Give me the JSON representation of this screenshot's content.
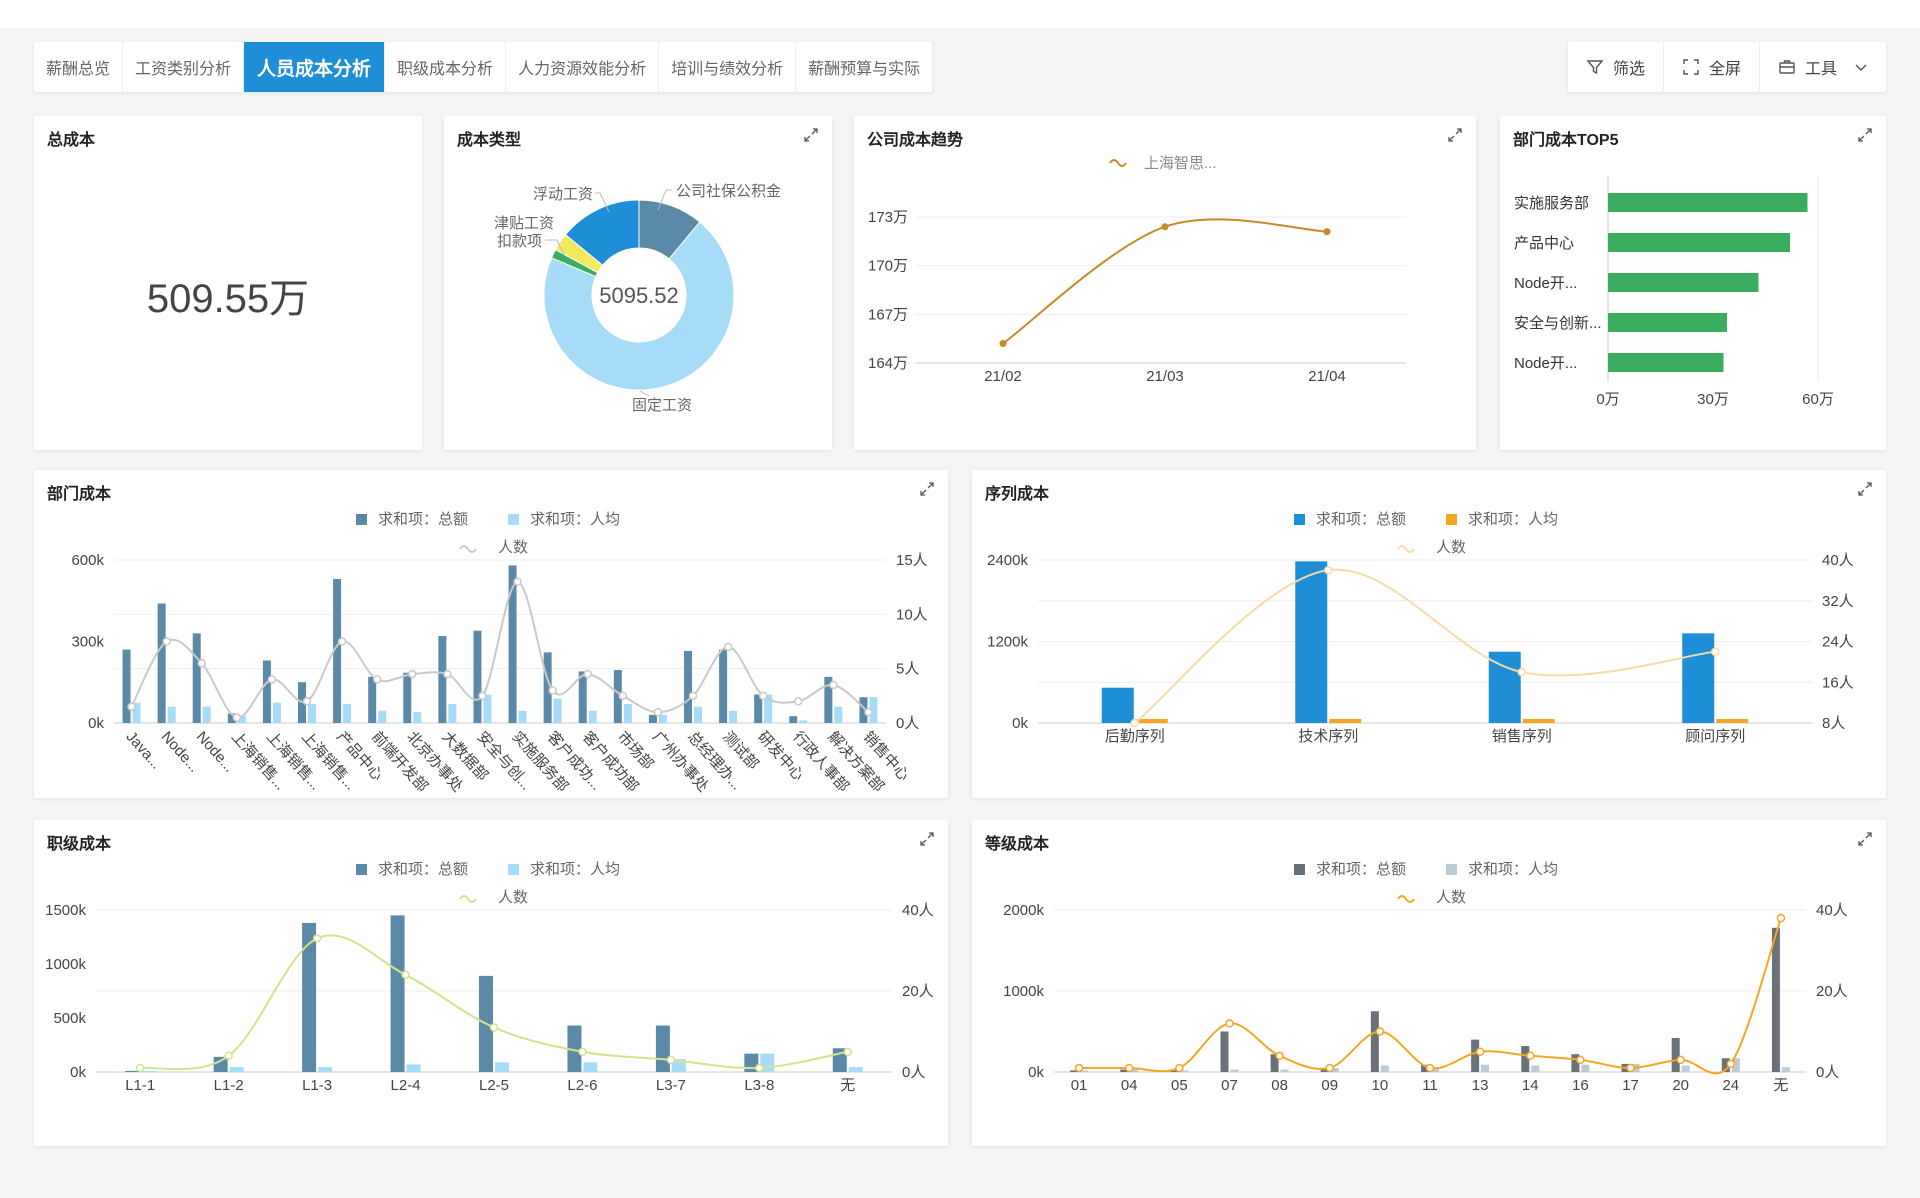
{
  "tabs": [
    "薪酬总览",
    "工资类别分析",
    "人员成本分析",
    "职级成本分析",
    "人力资源效能分析",
    "培训与绩效分析",
    "薪酬预算与实际"
  ],
  "active_tab": 2,
  "toolbar": {
    "filter": {
      "label": "筛选",
      "icon": "filter-icon"
    },
    "fullscreen": {
      "label": "全屏",
      "icon": "fullscreen-icon"
    },
    "tools": {
      "label": "工具",
      "icon": "toolbox-icon"
    }
  },
  "cards": {
    "total": {
      "title": "总成本",
      "value": "509.55万"
    },
    "cost_type": {
      "title": "成本类型"
    },
    "trend": {
      "title": "公司成本趋势"
    },
    "top5": {
      "title": "部门成本TOP5"
    },
    "dept": {
      "title": "部门成本"
    },
    "sequence": {
      "title": "序列成本"
    },
    "rank": {
      "title": "职级成本"
    },
    "grade": {
      "title": "等级成本"
    }
  },
  "legend": {
    "total": "求和项：总额",
    "avg": "求和项：人均",
    "count": "人数"
  },
  "colors": {
    "accent": "#1e8fd6",
    "steel": "#5b8aa8",
    "light_blue": "#a6dcf8",
    "orange": "#f5a623",
    "green": "#3cac5f",
    "gold": "#c88a26",
    "gray": "#6a7178",
    "yellow_green": "#d4e28c",
    "pale_orange": "#f9d9a8"
  },
  "chart_data": [
    {
      "id": "cost_type",
      "type": "pie",
      "center_label": "5095.52",
      "slices": [
        {
          "label": "固定工资",
          "value": 70,
          "color": "#a6dcf8"
        },
        {
          "label": "公司社保公积金",
          "value": 11,
          "color": "#5b8aa8"
        },
        {
          "label": "浮动工资",
          "value": 14,
          "color": "#1e8fd6"
        },
        {
          "label": "津贴工资",
          "value": 3,
          "color": "#f1ea5d"
        },
        {
          "label": "扣款项",
          "value": 1.5,
          "color": "#3cac5f"
        }
      ]
    },
    {
      "id": "trend",
      "type": "line",
      "legend": "上海智思...",
      "x": [
        "21/02",
        "21/03",
        "21/04"
      ],
      "y": [
        165.2,
        172.4,
        172.1
      ],
      "yticks": [
        "164万",
        "167万",
        "170万",
        "173万"
      ],
      "ylim": [
        164,
        173
      ]
    },
    {
      "id": "top5",
      "type": "bar",
      "orientation": "horizontal",
      "categories": [
        "实施服务部",
        "产品中心",
        "Node开...",
        "安全与创新...",
        "Node开..."
      ],
      "values": [
        57,
        52,
        43,
        34,
        33
      ],
      "xticks": [
        "0万",
        "30万",
        "60万"
      ],
      "xlim": [
        0,
        60
      ]
    },
    {
      "id": "dept",
      "type": "bar",
      "categories": [
        "Java...",
        "Node...",
        "Node...",
        "上海销售...",
        "上海销售...",
        "上海销售...",
        "产品中心",
        "前端开发部",
        "北京办事处",
        "大数据部",
        "安全与创...",
        "实施服务部",
        "客户成功...",
        "客户成功部",
        "市场部",
        "广州办事处",
        "总经理办...",
        "测试部",
        "研发中心",
        "行政人事部",
        "解决方案部",
        "销售中心"
      ],
      "series": [
        {
          "name": "求和项：总额",
          "values": [
            270,
            440,
            330,
            35,
            230,
            150,
            530,
            170,
            185,
            320,
            340,
            580,
            260,
            190,
            195,
            30,
            265,
            270,
            105,
            25,
            170,
            95
          ],
          "axis": "left"
        },
        {
          "name": "求和项：人均",
          "values": [
            75,
            60,
            60,
            25,
            75,
            70,
            70,
            45,
            40,
            70,
            105,
            45,
            90,
            45,
            70,
            30,
            60,
            45,
            105,
            10,
            60,
            95
          ],
          "axis": "left"
        },
        {
          "name": "人数",
          "values": [
            1.5,
            7.5,
            5.5,
            0.5,
            4,
            2,
            7.5,
            4,
            4.5,
            4.5,
            2.5,
            13,
            3,
            4.5,
            2.5,
            1,
            2.5,
            7,
            2.5,
            2,
            3.5,
            1
          ],
          "axis": "right"
        }
      ],
      "yticks": [
        "0k",
        "300k",
        "600k"
      ],
      "ylim": [
        0,
        600
      ],
      "y2ticks": [
        "0人",
        "5人",
        "10人",
        "15人"
      ],
      "y2lim": [
        0,
        15
      ]
    },
    {
      "id": "sequence",
      "type": "bar",
      "categories": [
        "后勤序列",
        "技术序列",
        "销售序列",
        "顾问序列"
      ],
      "series": [
        {
          "name": "求和项：总额",
          "values": [
            520,
            2380,
            1050,
            1320
          ],
          "axis": "left"
        },
        {
          "name": "求和项：人均",
          "values": [
            60,
            60,
            60,
            60
          ],
          "axis": "left"
        },
        {
          "name": "人数",
          "values": [
            8,
            38,
            18,
            22
          ],
          "axis": "right"
        }
      ],
      "yticks": [
        "0k",
        "1200k",
        "2400k"
      ],
      "ylim": [
        0,
        2400
      ],
      "y2ticks": [
        "8人",
        "16人",
        "24人",
        "32人",
        "40人"
      ],
      "y2lim": [
        8,
        40
      ]
    },
    {
      "id": "rank",
      "type": "bar",
      "categories": [
        "L1-1",
        "L1-2",
        "L1-3",
        "L2-4",
        "L2-5",
        "L2-6",
        "L3-7",
        "L3-8",
        "无"
      ],
      "series": [
        {
          "name": "求和项：总额",
          "values": [
            10,
            140,
            1380,
            1450,
            890,
            430,
            430,
            170,
            220
          ],
          "axis": "left"
        },
        {
          "name": "求和项：人均",
          "values": [
            10,
            45,
            45,
            70,
            90,
            90,
            120,
            170,
            45
          ],
          "axis": "left"
        },
        {
          "name": "人数",
          "values": [
            1,
            4,
            33,
            24,
            11,
            5,
            3,
            1,
            5
          ],
          "axis": "right"
        }
      ],
      "yticks": [
        "0k",
        "500k",
        "1000k",
        "1500k"
      ],
      "ylim": [
        0,
        1500
      ],
      "y2ticks": [
        "0人",
        "20人",
        "40人"
      ],
      "y2lim": [
        0,
        40
      ]
    },
    {
      "id": "grade",
      "type": "bar",
      "categories": [
        "01",
        "04",
        "05",
        "07",
        "08",
        "09",
        "10",
        "11",
        "13",
        "14",
        "16",
        "17",
        "20",
        "24",
        "无"
      ],
      "series": [
        {
          "name": "求和项：总额",
          "values": [
            20,
            30,
            20,
            500,
            220,
            50,
            750,
            90,
            400,
            320,
            220,
            100,
            420,
            170,
            1780
          ],
          "axis": "left"
        },
        {
          "name": "求和项：人均",
          "values": [
            20,
            30,
            20,
            30,
            30,
            50,
            80,
            60,
            90,
            80,
            90,
            100,
            80,
            170,
            60
          ],
          "axis": "left"
        },
        {
          "name": "人数",
          "values": [
            1,
            1,
            1,
            12,
            4,
            1,
            10,
            1,
            5,
            4,
            3,
            1,
            3,
            2,
            38
          ],
          "axis": "right"
        }
      ],
      "yticks": [
        "0k",
        "1000k",
        "2000k"
      ],
      "ylim": [
        0,
        2000
      ],
      "y2ticks": [
        "0人",
        "20人",
        "40人"
      ],
      "y2lim": [
        0,
        40
      ]
    }
  ]
}
